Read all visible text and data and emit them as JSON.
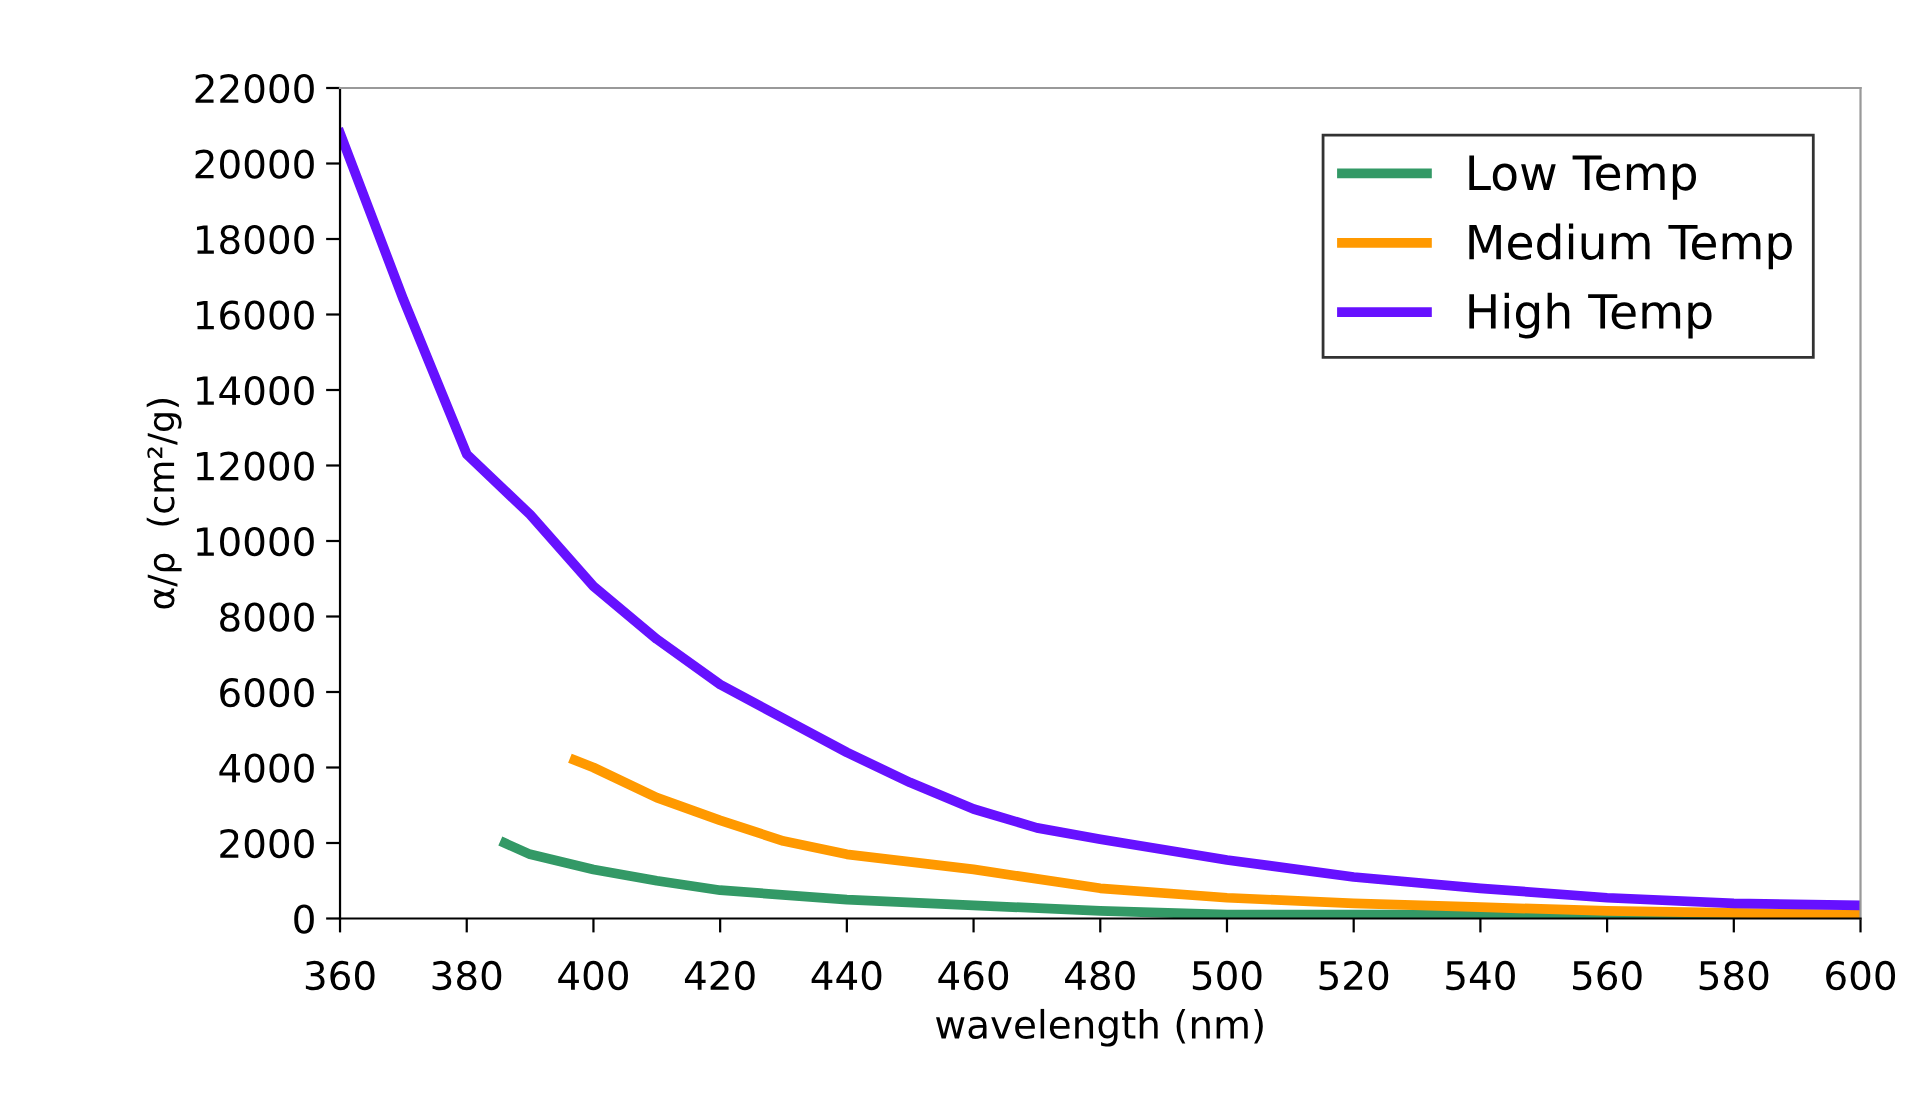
{
  "chart_data": {
    "type": "line",
    "xlabel": "wavelength (nm)",
    "ylabel": "α/ρ  (cm²/g)",
    "xlim": [
      360,
      600
    ],
    "xticks": [
      360,
      380,
      400,
      420,
      440,
      460,
      480,
      500,
      520,
      540,
      560,
      580,
      600
    ],
    "ylim": [
      0,
      22000
    ],
    "yticks": [
      0,
      2000,
      4000,
      6000,
      8000,
      10000,
      12000,
      14000,
      16000,
      18000,
      20000,
      22000
    ],
    "grid": false,
    "legend": "top right",
    "marker": "none",
    "line_style": "solid",
    "series": [
      {
        "name": "Low Temp",
        "color": "#339966",
        "x": [
          386,
          390,
          400,
          410,
          420,
          440,
          460,
          480,
          500,
          540,
          580,
          595
        ],
        "values": [
          2000,
          1700,
          1300,
          1000,
          750,
          500,
          350,
          200,
          100,
          100,
          50,
          50
        ]
      },
      {
        "name": "Medium Temp",
        "color": "#ff9900",
        "x": [
          397,
          400,
          410,
          420,
          430,
          440,
          460,
          480,
          500,
          520,
          540,
          560,
          580,
          600
        ],
        "values": [
          4200,
          4000,
          3200,
          2600,
          2050,
          1700,
          1300,
          800,
          550,
          400,
          300,
          200,
          150,
          100
        ]
      },
      {
        "name": "High Temp",
        "color": "#6611ff",
        "x": [
          360,
          370,
          380,
          390,
          400,
          410,
          420,
          430,
          440,
          450,
          460,
          470,
          480,
          500,
          520,
          540,
          560,
          580,
          600
        ],
        "values": [
          20800,
          16400,
          12300,
          10700,
          8800,
          7400,
          6200,
          5300,
          4400,
          3600,
          2900,
          2400,
          2100,
          1550,
          1100,
          800,
          550,
          400,
          350
        ]
      }
    ]
  }
}
